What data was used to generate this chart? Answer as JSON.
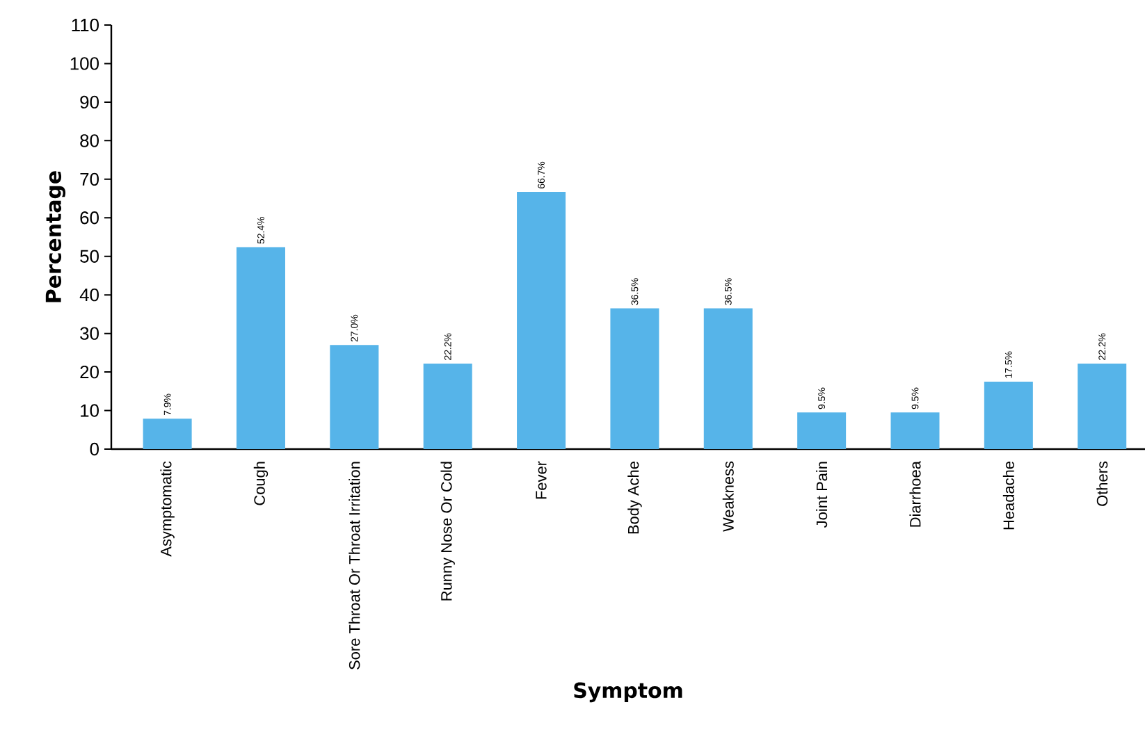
{
  "chart_data": {
    "type": "bar",
    "xlabel": "Symptom",
    "ylabel": "Percentage",
    "categories": [
      "Asymptomatic",
      "Cough",
      "Sore Throat Or Throat Irritation",
      "Runny Nose Or Cold",
      "Fever",
      "Body Ache",
      "Weakness",
      "Joint Pain",
      "Diarrhoea",
      "Headache",
      "Others"
    ],
    "values": [
      7.9,
      52.4,
      27.0,
      22.2,
      66.7,
      36.5,
      36.5,
      9.5,
      9.5,
      17.5,
      22.2
    ],
    "value_labels": [
      "7.9%",
      "52.4%",
      "27.0%",
      "22.2%",
      "66.7%",
      "36.5%",
      "36.5%",
      "9.5%",
      "9.5%",
      "17.5%",
      "22.2%"
    ],
    "color": "#56b4e9",
    "ylim": [
      0,
      110
    ],
    "yticks": [
      0,
      10,
      20,
      30,
      40,
      50,
      60,
      70,
      80,
      90,
      100,
      110
    ],
    "grid": false
  }
}
